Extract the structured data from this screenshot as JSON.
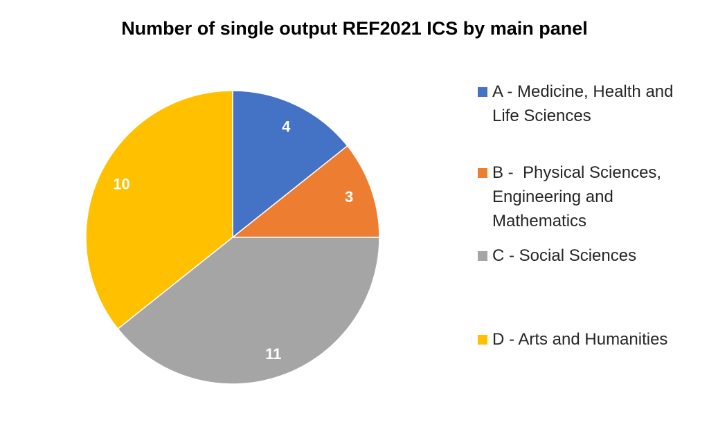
{
  "chart_data": {
    "type": "pie",
    "title": "Number of single output REF2021 ICS by main panel",
    "categories": [
      "A - Medicine, Health and Life Sciences",
      "B -  Physical Sciences, Engineering and Mathematics",
      "C - Social Sciences",
      "D - Arts and Humanities"
    ],
    "values": [
      4,
      3,
      11,
      10
    ],
    "colors": [
      "#4472C4",
      "#ED7D31",
      "#A5A5A5",
      "#FFC000"
    ],
    "data_labels": [
      "4",
      "3",
      "11",
      "10"
    ],
    "start_angle": "12 o'clock",
    "direction": "clockwise",
    "legend_position": "right"
  }
}
